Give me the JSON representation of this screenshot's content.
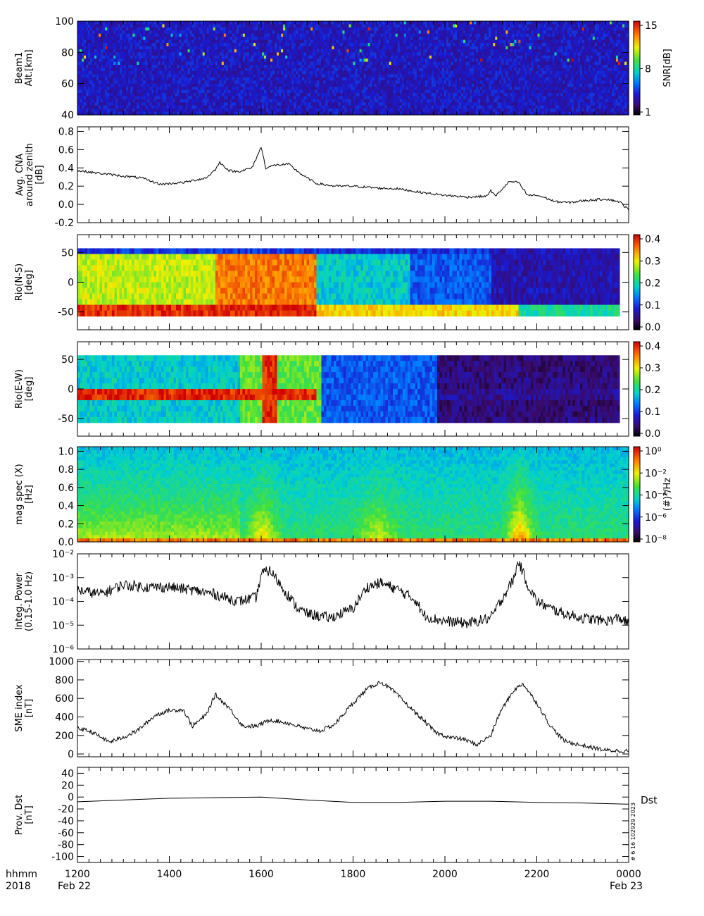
{
  "chart_data": [
    {
      "type": "heatmap",
      "ylabel_lines": [
        "Beam1",
        "Alt.[km]"
      ],
      "yticks": [
        "40",
        "60",
        "80",
        "100"
      ],
      "ylim": [
        40,
        100
      ],
      "colorbar": {
        "label": "SNR[dB]",
        "ticks": [
          "1",
          "8",
          "15"
        ],
        "range": [
          1,
          15
        ]
      },
      "description_values": {
        "background_level": 2,
        "sparse_bursts_max": 15
      }
    },
    {
      "type": "line",
      "ylabel_lines": [
        "Avg. CNA",
        "around zenith",
        "[dB]"
      ],
      "yticks": [
        "-0.2",
        "0.0",
        "0.2",
        "0.4",
        "0.6",
        "0.8"
      ],
      "ylim": [
        -0.2,
        0.85
      ],
      "x_hours": [
        12.0,
        12.5,
        13.0,
        13.4,
        13.8,
        14.3,
        14.8,
        15.0,
        15.1,
        15.3,
        15.5,
        15.8,
        16.0,
        16.1,
        16.3,
        16.6,
        16.9,
        17.2,
        17.6,
        18.0,
        18.5,
        19.0,
        19.5,
        20.0,
        20.5,
        20.9,
        21.0,
        21.1,
        21.4,
        21.6,
        21.8,
        22.0,
        22.2,
        22.4,
        22.7,
        23.0,
        23.5,
        23.8,
        24.0
      ],
      "y": [
        0.37,
        0.34,
        0.31,
        0.29,
        0.22,
        0.24,
        0.29,
        0.38,
        0.46,
        0.37,
        0.36,
        0.4,
        0.63,
        0.4,
        0.43,
        0.44,
        0.32,
        0.23,
        0.2,
        0.2,
        0.18,
        0.17,
        0.13,
        0.1,
        0.08,
        0.09,
        0.15,
        0.09,
        0.25,
        0.24,
        0.1,
        0.1,
        0.07,
        0.03,
        0.02,
        0.04,
        0.06,
        0.03,
        -0.06
      ]
    },
    {
      "type": "heatmap",
      "ylabel_lines": [
        "Rio(N-S)",
        "[deg]"
      ],
      "yticks": [
        "-50",
        "0",
        "50"
      ],
      "ylim": [
        -80,
        80
      ],
      "colorbar": {
        "label": "",
        "ticks": [
          "0.0",
          "0.1",
          "0.2",
          "0.3",
          "0.4"
        ],
        "range": [
          0,
          0.45
        ]
      }
    },
    {
      "type": "heatmap",
      "ylabel_lines": [
        "Rio(E-W)",
        "[deg]"
      ],
      "yticks": [
        "-50",
        "0",
        "50"
      ],
      "ylim": [
        -80,
        80
      ],
      "colorbar": {
        "label": "",
        "ticks": [
          "0.0",
          "0.1",
          "0.2",
          "0.3",
          "0.4"
        ],
        "range": [
          0,
          0.45
        ]
      }
    },
    {
      "type": "heatmap",
      "ylabel_lines": [
        "mag spec (X)",
        "[Hz]"
      ],
      "yticks": [
        "0.0",
        "0.2",
        "0.4",
        "0.6",
        "0.8",
        "1.0"
      ],
      "ylim": [
        0,
        1.05
      ],
      "colorbar": {
        "label": "(#)²/Hz",
        "ticks": [
          "10⁻⁸",
          "10⁻⁶",
          "10⁻⁴",
          "10⁻²",
          "10⁰"
        ],
        "range_log10": [
          -9,
          1
        ]
      }
    },
    {
      "type": "line",
      "ylabel_lines": [
        "Integ. Power",
        "(0.15-1.0 Hz)"
      ],
      "yticks": [
        "10⁻⁶",
        "10⁻⁵",
        "10⁻⁴",
        "10⁻³",
        "10⁻²"
      ],
      "ylim_log10": [
        -6,
        -2
      ],
      "scale": "log",
      "x_hours": [
        12.0,
        12.5,
        13.0,
        13.5,
        14.0,
        14.5,
        15.0,
        15.5,
        15.9,
        16.0,
        16.2,
        16.5,
        16.8,
        17.0,
        17.5,
        18.0,
        18.3,
        18.6,
        19.0,
        19.4,
        19.5,
        19.7,
        20.0,
        20.5,
        21.0,
        21.3,
        21.5,
        21.6,
        21.8,
        22.0,
        22.3,
        22.6,
        23.0,
        23.5,
        23.8,
        24.0
      ],
      "y": [
        0.0003,
        0.0002,
        0.0005,
        0.0004,
        0.0004,
        0.0003,
        0.0002,
        0.0001,
        0.00015,
        0.0015,
        0.002,
        0.0003,
        5e-05,
        3e-05,
        2e-05,
        5e-05,
        0.0004,
        0.0006,
        0.0003,
        0.0001,
        3e-05,
        2e-05,
        1.5e-05,
        1.2e-05,
        2e-05,
        0.0002,
        0.0009,
        0.005,
        0.0005,
        0.0001,
        5e-05,
        3e-05,
        2e-05,
        1.5e-05,
        2e-05,
        1.2e-05
      ]
    },
    {
      "type": "line",
      "ylabel_lines": [
        "SME index",
        "[nT]"
      ],
      "yticks": [
        "0",
        "200",
        "400",
        "600",
        "800",
        "1000"
      ],
      "ylim": [
        -30,
        1020
      ],
      "x_hours": [
        12.0,
        12.3,
        12.7,
        13.0,
        13.3,
        13.7,
        14.0,
        14.3,
        14.5,
        14.8,
        15.0,
        15.3,
        15.6,
        15.9,
        16.2,
        16.6,
        17.0,
        17.3,
        17.6,
        18.0,
        18.3,
        18.6,
        18.9,
        19.2,
        19.5,
        19.8,
        20.1,
        20.4,
        20.7,
        21.0,
        21.2,
        21.5,
        21.7,
        22.0,
        22.3,
        22.6,
        23.0,
        23.5,
        24.0
      ],
      "y": [
        280,
        240,
        130,
        180,
        250,
        420,
        470,
        480,
        300,
        420,
        640,
        500,
        300,
        300,
        370,
        330,
        270,
        250,
        320,
        550,
        700,
        780,
        670,
        520,
        380,
        230,
        180,
        160,
        100,
        200,
        450,
        690,
        760,
        550,
        300,
        140,
        90,
        40,
        30
      ]
    },
    {
      "type": "line",
      "ylabel_lines": [
        "Prov. Dst",
        "[nT]"
      ],
      "yticks": [
        "-100",
        "-80",
        "-60",
        "-40",
        "-20",
        "0",
        "20",
        "40"
      ],
      "ylim": [
        -110,
        50
      ],
      "x_hours": [
        12,
        13,
        14,
        15,
        16,
        17,
        18,
        19,
        20,
        21,
        22,
        23,
        24
      ],
      "y": [
        -8,
        -5,
        -2,
        -1,
        0,
        -5,
        -9,
        -9,
        -7,
        -7,
        -9,
        -10,
        -12
      ],
      "side_label": "Dst",
      "side_stamp": "# 6 16 102929 2023"
    }
  ],
  "x_axis": {
    "row_label_lines": [
      "hhmm",
      "2018"
    ],
    "tick_labels": [
      "1200",
      "1400",
      "1600",
      "1800",
      "2000",
      "2200",
      "0000"
    ],
    "date_left": "Feb 22",
    "date_right": "Feb 23"
  },
  "colors": {
    "line": "#000000",
    "background": "#ffffff"
  }
}
